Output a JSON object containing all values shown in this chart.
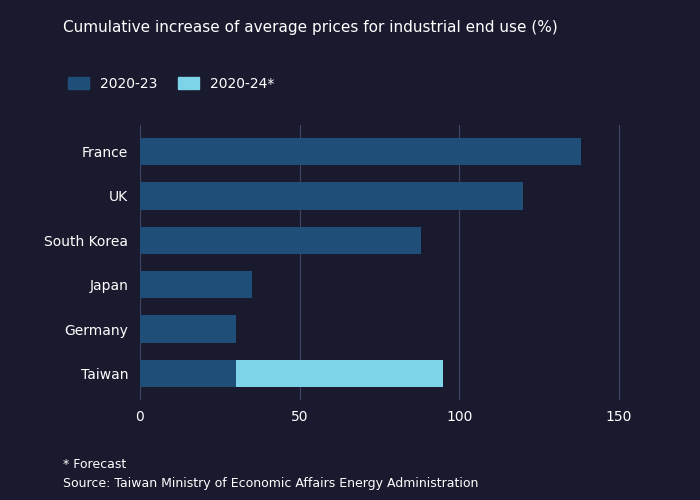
{
  "title": "Cumulative increase of average prices for industrial end use (%)",
  "categories": [
    "France",
    "UK",
    "South Korea",
    "Japan",
    "Germany",
    "Taiwan"
  ],
  "values_2023": [
    138,
    120,
    88,
    35,
    30,
    30
  ],
  "values_2024_extra": [
    0,
    0,
    0,
    0,
    0,
    65
  ],
  "bar_color_dark": "#1f4e79",
  "bar_color_light": "#7dd4e8",
  "xlim": [
    0,
    160
  ],
  "xticks": [
    0,
    50,
    100,
    150
  ],
  "legend_label_dark": "2020-23",
  "legend_label_light": "2020-24*",
  "footnote1": "* Forecast",
  "footnote2": "Source: Taiwan Ministry of Economic Affairs Energy Administration",
  "background_color": "#1a1a2e",
  "text_color": "#ffffff",
  "grid_color": "#444466",
  "title_fontsize": 11,
  "tick_fontsize": 10,
  "label_fontsize": 10
}
